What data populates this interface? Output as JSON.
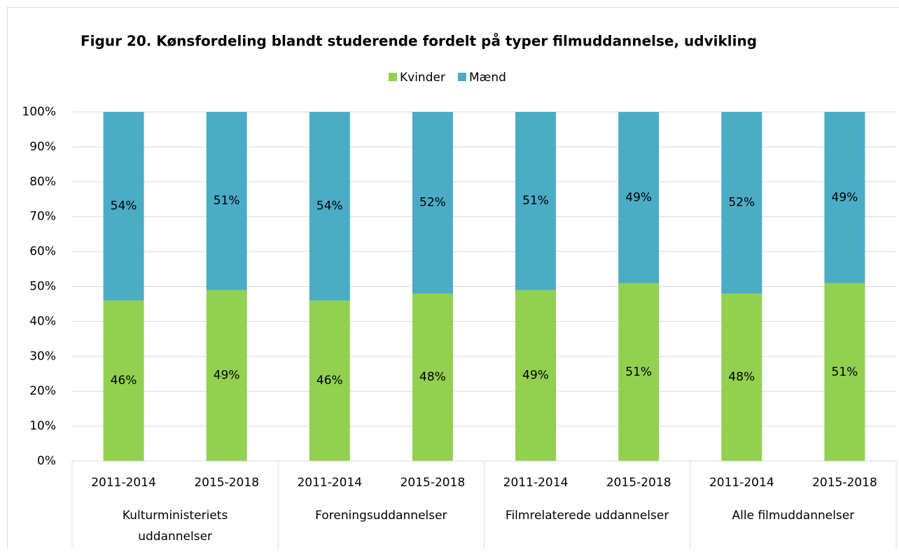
{
  "chart_data": {
    "type": "stacked_bar",
    "title": "Figur 20. Kønsfordeling blandt studerende fordelt på typer filmuddannelse, udvikling",
    "categories": [
      "2011-2014",
      "2015-2018",
      "2011-2014",
      "2015-2018",
      "2011-2014",
      "2015-2018",
      "2011-2014",
      "2015-2018"
    ],
    "groups": [
      "Kulturministeriets uddannelser",
      "Foreningsuddannelser",
      "Filmrelaterede uddannelser",
      "Alle filmuddannelser"
    ],
    "series": [
      {
        "name": "Kvinder",
        "color": "#92d050",
        "values": [
          46,
          49,
          46,
          48,
          49,
          51,
          48,
          51
        ],
        "value_labels": [
          "46%",
          "49%",
          "46%",
          "48%",
          "49%",
          "51%",
          "48%",
          "51%"
        ]
      },
      {
        "name": "Mænd",
        "color": "#4bacc6",
        "values": [
          54,
          51,
          54,
          52,
          51,
          49,
          52,
          49
        ],
        "value_labels": [
          "54%",
          "51%",
          "54%",
          "52%",
          "51%",
          "49%",
          "52%",
          "49%"
        ]
      }
    ],
    "ylim": [
      0,
      100
    ],
    "yticks": [
      {
        "value": 0,
        "label": "0%"
      },
      {
        "value": 10,
        "label": "10%"
      },
      {
        "value": 20,
        "label": "20%"
      },
      {
        "value": 30,
        "label": "30%"
      },
      {
        "value": 40,
        "label": "40%"
      },
      {
        "value": 50,
        "label": "50%"
      },
      {
        "value": 60,
        "label": "60%"
      },
      {
        "value": 70,
        "label": "70%"
      },
      {
        "value": 80,
        "label": "80%"
      },
      {
        "value": 90,
        "label": "90%"
      },
      {
        "value": 100,
        "label": "100%"
      }
    ],
    "grid": true,
    "legend": "top"
  }
}
